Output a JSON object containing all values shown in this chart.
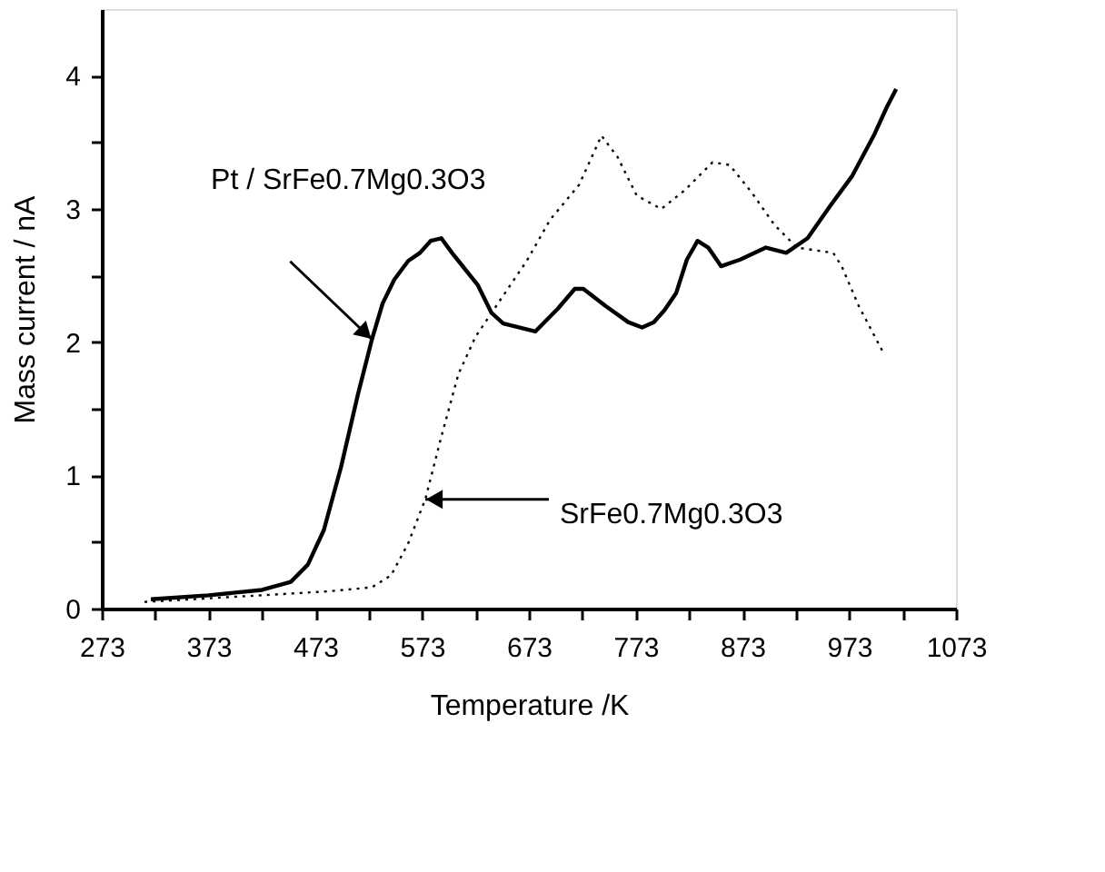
{
  "chart_data": {
    "type": "line",
    "xlabel": "Temperature /K",
    "ylabel": "Mass current / nA",
    "xlim": [
      273,
      1073
    ],
    "ylim": [
      0,
      4.5
    ],
    "xticks": [
      273,
      {
        "value": 323,
        "label": null
      },
      373,
      {
        "value": 423,
        "label": null
      },
      473,
      {
        "value": 523,
        "label": null
      },
      573,
      {
        "value": 623,
        "label": null
      },
      673,
      {
        "value": 723,
        "label": null
      },
      773,
      {
        "value": 823,
        "label": null
      },
      873,
      {
        "value": 923,
        "label": null
      },
      973,
      {
        "value": 1023,
        "label": null
      },
      1073
    ],
    "yticks": [
      0,
      {
        "value": 0.5,
        "label": null
      },
      1,
      {
        "value": 1.5,
        "label": null
      },
      2,
      {
        "value": 2.5,
        "label": null
      },
      3,
      {
        "value": 3.5,
        "label": null
      },
      4
    ],
    "grid": false,
    "annotations": [
      "Pt / SrFe0.7Mg0.3O3",
      "SrFe0.7Mg0.3O3"
    ],
    "series": [
      {
        "color": "#000000",
        "line_style": "solid",
        "x": [
          319,
          373,
          423,
          450,
          466,
          481,
          497,
          513,
          526,
          536,
          547,
          560,
          571,
          581,
          591,
          601,
          625,
          638,
          649,
          679,
          700,
          716,
          724,
          745,
          766,
          779,
          790,
          800,
          811,
          821,
          831,
          841,
          853,
          871,
          895,
          914,
          934,
          955,
          976,
          996,
          1008,
          1017
        ],
        "values": [
          0.07,
          0.1,
          0.14,
          0.2,
          0.33,
          0.59,
          1.06,
          1.61,
          2.02,
          2.29,
          2.47,
          2.61,
          2.67,
          2.76,
          2.78,
          2.67,
          2.43,
          2.22,
          2.14,
          2.08,
          2.25,
          2.4,
          2.4,
          2.27,
          2.15,
          2.11,
          2.15,
          2.24,
          2.37,
          2.62,
          2.76,
          2.71,
          2.57,
          2.62,
          2.71,
          2.67,
          2.78,
          3.02,
          3.25,
          3.55,
          3.76,
          3.9
        ]
      },
      {
        "color": "#000000",
        "line_style": "dotted",
        "x": [
          313,
          423,
          486,
          526,
          544,
          560,
          576,
          591,
          607,
          623,
          644,
          671,
          693,
          720,
          741,
          756,
          774,
          797,
          819,
          845,
          861,
          882,
          903,
          924,
          958,
          966,
          982,
          1005
        ],
        "values": [
          0.05,
          0.1,
          0.13,
          0.16,
          0.25,
          0.49,
          0.82,
          1.29,
          1.76,
          2.04,
          2.29,
          2.61,
          2.92,
          3.18,
          3.55,
          3.39,
          3.1,
          3.0,
          3.14,
          3.35,
          3.33,
          3.12,
          2.88,
          2.71,
          2.67,
          2.57,
          2.27,
          1.92
        ]
      }
    ]
  }
}
